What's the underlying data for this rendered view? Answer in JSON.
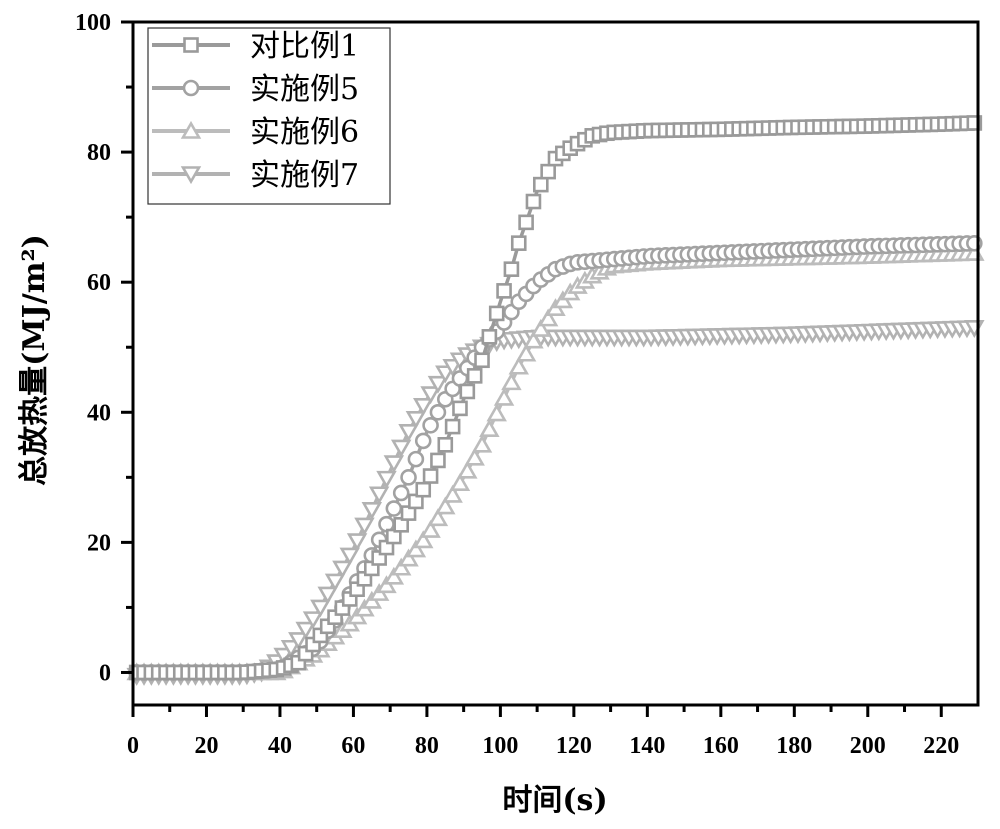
{
  "chart_data": {
    "type": "line",
    "title": "",
    "xlabel": "时间(s)",
    "ylabel": "总放热量(MJ/m²)",
    "xlim": [
      0,
      230
    ],
    "ylim": [
      -5,
      100
    ],
    "xticks": [
      "0",
      "20",
      "40",
      "60",
      "80",
      "100",
      "120",
      "140",
      "160",
      "180",
      "200",
      "220"
    ],
    "yticks": [
      "0",
      "20",
      "40",
      "60",
      "80",
      "100"
    ],
    "grid": false,
    "legend_position": "top-left",
    "series": [
      {
        "name": "对比例1",
        "marker": "square",
        "color": "#9a9a9a",
        "x": [
          0,
          30,
          40,
          45,
          50,
          60,
          70,
          80,
          85,
          90,
          95,
          100,
          103,
          105,
          110,
          115,
          120,
          125,
          130,
          140,
          160,
          180,
          200,
          220,
          230
        ],
        "y": [
          0,
          0,
          0.5,
          1.5,
          5,
          12,
          20,
          29,
          35,
          42,
          48,
          57,
          62,
          66,
          74,
          79,
          81,
          82.5,
          83,
          83.3,
          83.5,
          83.8,
          84,
          84.3,
          84.5
        ]
      },
      {
        "name": "实施例5",
        "marker": "circle",
        "color": "#a2a2a2",
        "x": [
          0,
          30,
          40,
          50,
          55,
          60,
          65,
          70,
          75,
          80,
          85,
          90,
          95,
          100,
          105,
          110,
          115,
          120,
          130,
          140,
          160,
          180,
          200,
          230
        ],
        "y": [
          0,
          0,
          0.5,
          4,
          8,
          13,
          18,
          24,
          30,
          37,
          42,
          46,
          50,
          53,
          57,
          60,
          62,
          63,
          63.5,
          64,
          64.5,
          65,
          65.5,
          66
        ]
      },
      {
        "name": "实施例6",
        "marker": "triangle-up",
        "color": "#bcbcbc",
        "x": [
          0,
          30,
          40,
          50,
          60,
          70,
          80,
          90,
          95,
          100,
          105,
          110,
          115,
          120,
          125,
          130,
          140,
          160,
          200,
          230
        ],
        "y": [
          0,
          0,
          0,
          3,
          8,
          14,
          21,
          30,
          35,
          41,
          47,
          52,
          56,
          59,
          61,
          62.5,
          63,
          63.5,
          64,
          64.5
        ]
      },
      {
        "name": "实施例7",
        "marker": "triangle-down",
        "color": "#b2b2b2",
        "x": [
          0,
          30,
          35,
          40,
          45,
          50,
          55,
          60,
          65,
          70,
          75,
          80,
          85,
          90,
          95,
          100,
          110,
          140,
          180,
          230
        ],
        "y": [
          -0.5,
          -0.5,
          0,
          2,
          5,
          9,
          14,
          19,
          25,
          31,
          37,
          42,
          46,
          48.5,
          50,
          51,
          51.5,
          51.5,
          52,
          53
        ]
      }
    ]
  }
}
